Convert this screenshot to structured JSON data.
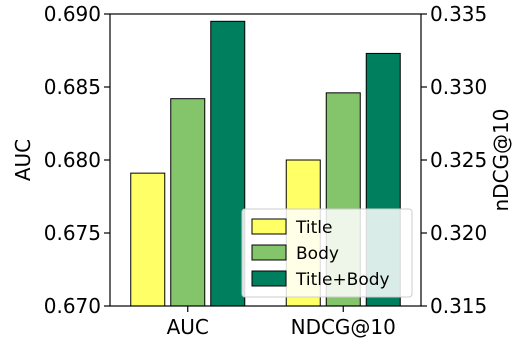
{
  "chart_data": {
    "type": "bar",
    "categories": [
      "AUC",
      "NDCG@10"
    ],
    "series": [
      {
        "name": "Title",
        "color": "#ffff66",
        "values": [
          0.6791,
          0.325
        ]
      },
      {
        "name": "Body",
        "color": "#84c46b",
        "values": [
          0.6842,
          0.3296
        ]
      },
      {
        "name": "Title+Body",
        "color": "#007f5f",
        "values": [
          0.6895,
          0.3323
        ]
      }
    ],
    "value_axis": {
      "AUC": "left",
      "NDCG@10": "right"
    },
    "ylabel_left": "AUC",
    "ylabel_right": "nDCG@10",
    "ylim_left": [
      0.67,
      0.69
    ],
    "ylim_right": [
      0.315,
      0.335
    ],
    "yticks_left": [
      "0.670",
      "0.675",
      "0.680",
      "0.685",
      "0.690"
    ],
    "yticks_right": [
      "0.315",
      "0.320",
      "0.325",
      "0.330",
      "0.335"
    ],
    "legend_position": "lower-right",
    "grid": false
  }
}
